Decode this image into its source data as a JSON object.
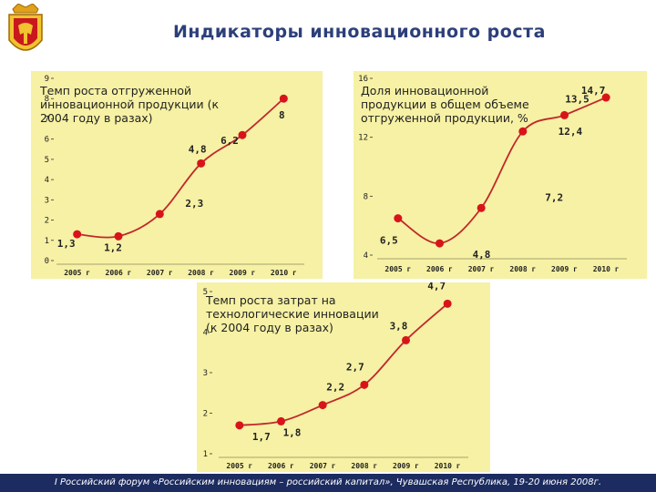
{
  "header": {
    "title": "Индикаторы инновационного роста"
  },
  "footer": {
    "text": "I Российский форум «Российским инновациям – российский капитал», Чувашская Республика, 19-20 июня 2008г."
  },
  "colors": {
    "panel_bg": "#f6f1a4",
    "line": "#c0282c",
    "point": "#d8141a",
    "title": "#2c3f7a",
    "footer_bg": "#1c2c60"
  },
  "chart_data": [
    {
      "type": "line",
      "title": "Темп роста отгруженной инновационной продукции (к 2004 году в разах)",
      "categories": [
        "2005 г",
        "2006 г",
        "2007 г",
        "2008 г",
        "2009 г",
        "2010 г"
      ],
      "values": [
        1.3,
        1.2,
        2.3,
        4.8,
        6.2,
        8
      ],
      "value_labels": [
        "1,3",
        "1,2",
        "2,3",
        "4,8",
        "6,2",
        "8"
      ],
      "yticks": [
        "0",
        "1",
        "2",
        "3",
        "4",
        "5",
        "6",
        "7",
        "8",
        "9"
      ],
      "ylim": [
        0,
        9
      ],
      "grid": false
    },
    {
      "type": "line",
      "title": "Доля инновационной продукции в общем объеме отгруженной продукции, %",
      "categories": [
        "2005 г",
        "2006 г",
        "2007 г",
        "2008 г",
        "2009 г",
        "2010 г"
      ],
      "values": [
        6.5,
        4.8,
        7.2,
        12.4,
        13.5,
        14.7
      ],
      "value_labels": [
        "6,5",
        "4,8",
        "7,2",
        "12,4",
        "13,5",
        "14,7"
      ],
      "yticks": [
        "4",
        "8",
        "12",
        "16"
      ],
      "ylim": [
        4,
        16
      ],
      "grid": false
    },
    {
      "type": "line",
      "title": "Темп роста затрат на технологические инновации (к 2004 году в разах)",
      "categories": [
        "2005 г",
        "2006 г",
        "2007 г",
        "2008 г",
        "2009 г",
        "2010 г"
      ],
      "values": [
        1.7,
        1.8,
        2.2,
        2.7,
        3.8,
        4.7
      ],
      "value_labels": [
        "1,7",
        "1,8",
        "2,2",
        "2,7",
        "3,8",
        "4,7"
      ],
      "yticks": [
        "1",
        "2",
        "3",
        "4",
        "5"
      ],
      "ylim": [
        1,
        5
      ],
      "grid": false
    }
  ]
}
